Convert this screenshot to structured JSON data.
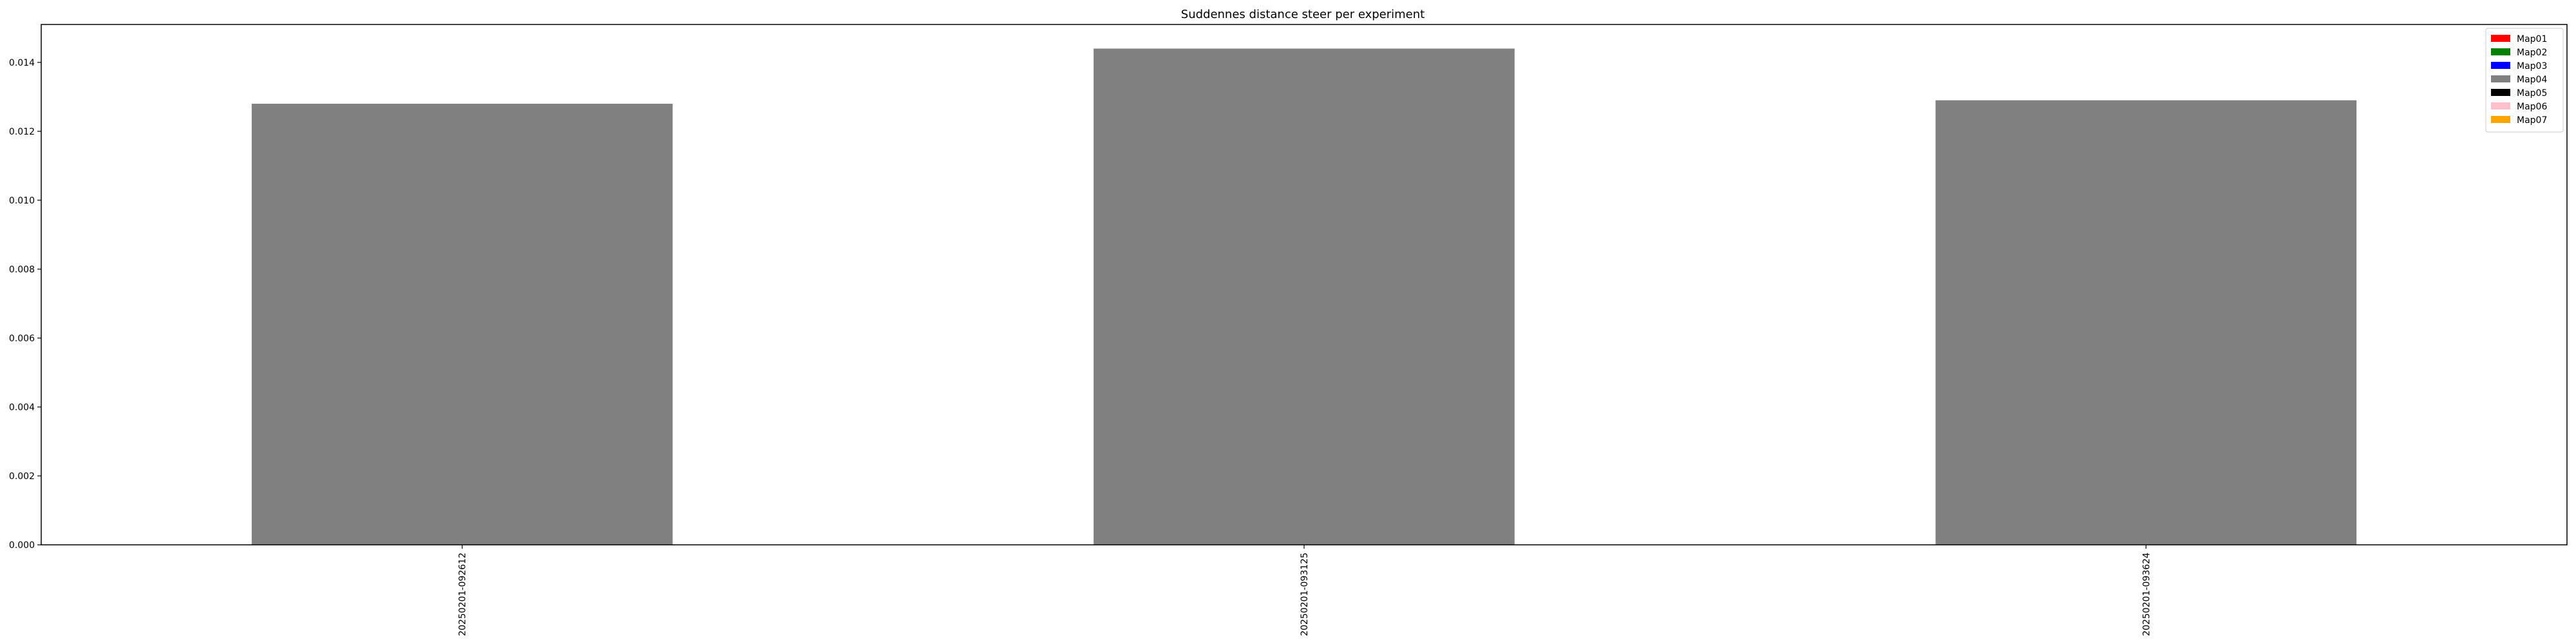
{
  "chart_data": {
    "type": "bar",
    "title": "Suddennes distance steer per experiment",
    "xlabel": "",
    "ylabel": "",
    "categories": [
      "20250201-092612",
      "20250201-093125",
      "20250201-093624"
    ],
    "values": [
      0.0128,
      0.0144,
      0.0129
    ],
    "bar_color": "#808080",
    "ylim": [
      0,
      0.0151
    ],
    "yticks": [
      0.0,
      0.002,
      0.004,
      0.006,
      0.008,
      0.01,
      0.012,
      0.014
    ],
    "ytick_labels": [
      "0.000",
      "0.002",
      "0.004",
      "0.006",
      "0.008",
      "0.010",
      "0.012",
      "0.014"
    ],
    "grid": false,
    "legend_position": "top-right",
    "legend": [
      {
        "label": "Map01",
        "color": "#ff0000"
      },
      {
        "label": "Map02",
        "color": "#008000"
      },
      {
        "label": "Map03",
        "color": "#0000ff"
      },
      {
        "label": "Map04",
        "color": "#808080"
      },
      {
        "label": "Map05",
        "color": "#000000"
      },
      {
        "label": "Map06",
        "color": "#ffc0cb"
      },
      {
        "label": "Map07",
        "color": "#ffa500"
      }
    ]
  }
}
